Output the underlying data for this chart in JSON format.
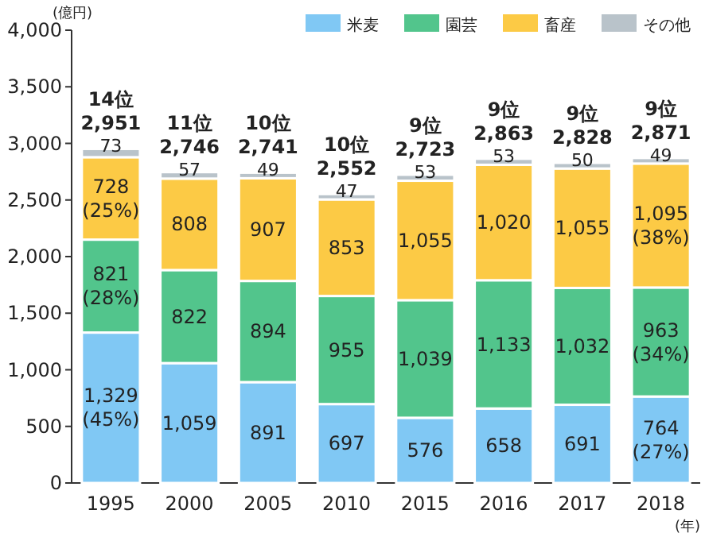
{
  "chart_data": {
    "type": "bar",
    "stacked": true,
    "ylabel": "(億円)",
    "xlabel": "(年)",
    "categories": [
      "1995",
      "2000",
      "2005",
      "2010",
      "2015",
      "2016",
      "2017",
      "2018"
    ],
    "series": [
      {
        "name": "米麦",
        "color": "#80c8f4",
        "values": [
          1329,
          1059,
          891,
          697,
          576,
          658,
          691,
          764
        ],
        "value_labels": [
          "1,329\n(45%)",
          "1,059",
          "891",
          "697",
          "576",
          "658",
          "691",
          "764\n(27%)"
        ]
      },
      {
        "name": "園芸",
        "color": "#52c58c",
        "values": [
          821,
          822,
          894,
          955,
          1039,
          1133,
          1032,
          963
        ],
        "value_labels": [
          "821\n(28%)",
          "822",
          "894",
          "955",
          "1,039",
          "1,133",
          "1,032",
          "963\n(34%)"
        ]
      },
      {
        "name": "畜産",
        "color": "#fcca45",
        "values": [
          728,
          808,
          907,
          853,
          1055,
          1020,
          1055,
          1095
        ],
        "value_labels": [
          "728\n(25%)",
          "808",
          "907",
          "853",
          "1,055",
          "1,020",
          "1,055",
          "1,095\n(38%)"
        ]
      },
      {
        "name": "その他",
        "color": "#b9c3ca",
        "values": [
          73,
          57,
          49,
          47,
          53,
          53,
          50,
          49
        ],
        "value_labels": [
          "73",
          "57",
          "49",
          "47",
          "53",
          "53",
          "50",
          "49"
        ]
      }
    ],
    "totals": [
      "14位\n2,951",
      "11位\n2,746",
      "10位\n2,741",
      "10位\n2,552",
      "9位\n2,723",
      "9位\n2,863",
      "9位\n2,828",
      "9位\n2,871"
    ],
    "ylim": [
      0,
      4000
    ],
    "yticks": [
      0,
      500,
      {
        "value": 1000,
        "label": "1,000"
      },
      {
        "value": 1500,
        "label": "1,500"
      },
      {
        "value": 2000,
        "label": "2,000"
      },
      {
        "value": 2500,
        "label": "2,500"
      },
      {
        "value": 3000,
        "label": "3,000"
      },
      {
        "value": 3500,
        "label": "3,500"
      },
      {
        "value": 4000,
        "label": "4,000"
      }
    ],
    "legend": "top right"
  }
}
